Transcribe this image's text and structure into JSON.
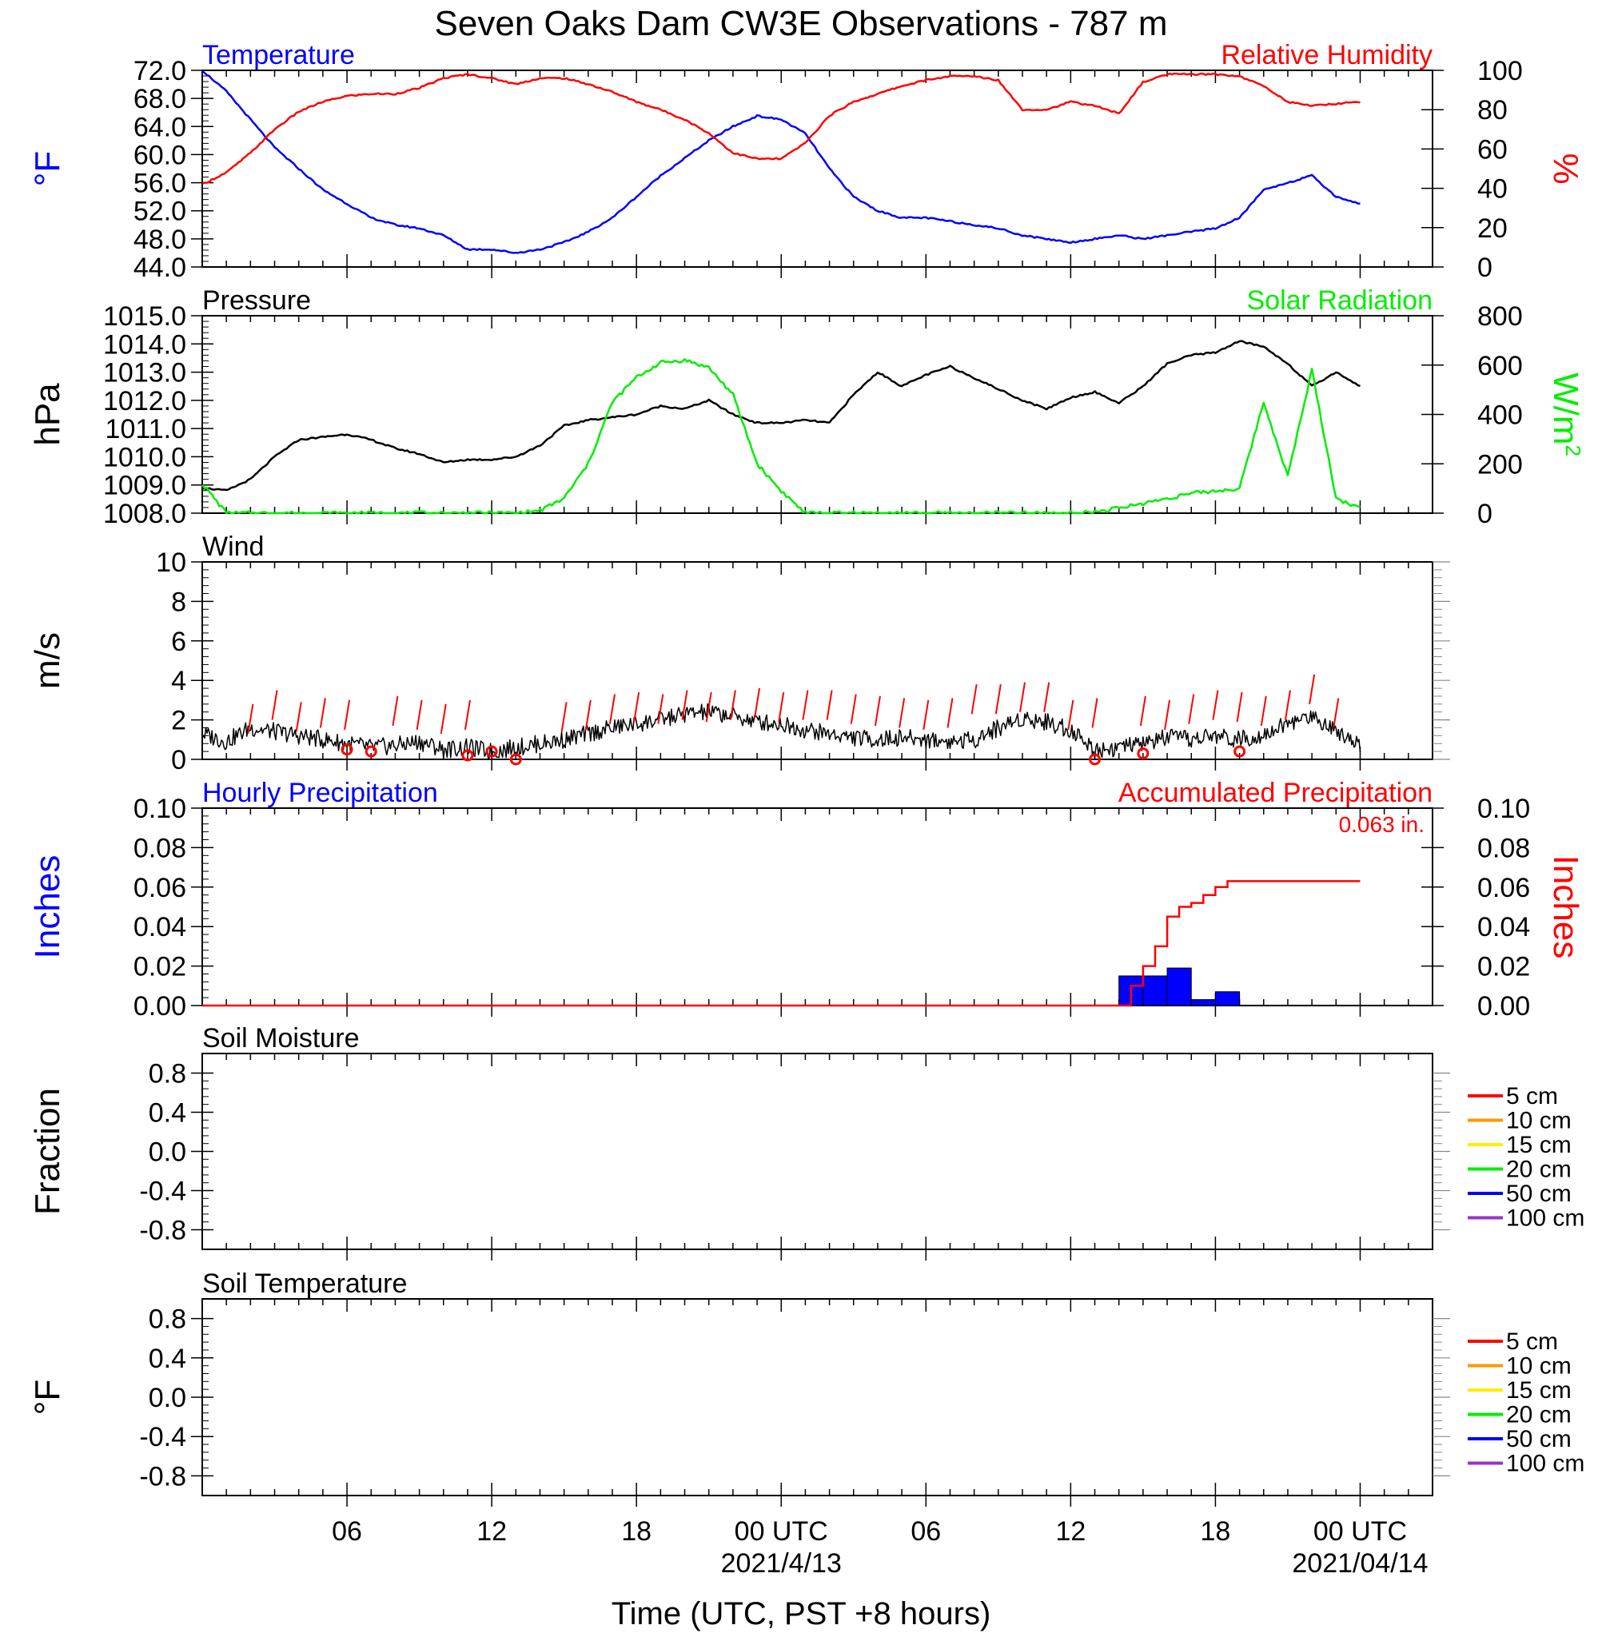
{
  "figure": {
    "title": "Seven Oaks Dam CW3E Observations - 787 m",
    "xlabel": "Time (UTC, PST +8 hours)",
    "x_ticks": [
      "06",
      "12",
      "18",
      "00 UTC",
      "06",
      "12",
      "18",
      "00 UTC"
    ],
    "x_dates": [
      "2021/4/13",
      "2021/04/14"
    ]
  },
  "colors": {
    "temperature": "#0000ff",
    "humidity": "#ff0000",
    "pressure": "#000000",
    "solar": "#00ee00",
    "wind": "#000000",
    "gust": "#ff0000",
    "hourly_precip": "#0000ff",
    "accum_precip": "#ff0000"
  },
  "chart_data": [
    {
      "id": "temp_rh",
      "type": "line",
      "left_title": "Temperature",
      "right_title": "Relative Humidity",
      "ylabel_left": "°F",
      "ylabel_right": "%",
      "ylim_left": [
        44,
        72
      ],
      "ylim_right": [
        0,
        100
      ],
      "yticks_left": [
        "72.0",
        "68.0",
        "64.0",
        "60.0",
        "56.0",
        "52.0",
        "48.0",
        "44.0"
      ],
      "yticks_right": [
        "100",
        "80",
        "60",
        "40",
        "20",
        "0"
      ],
      "x_hours": [
        0,
        1,
        2,
        3,
        4,
        5,
        6,
        7,
        8,
        9,
        10,
        11,
        12,
        13,
        14,
        15,
        16,
        17,
        18,
        19,
        20,
        21,
        22,
        23,
        24,
        25,
        26,
        27,
        28,
        29,
        30,
        31,
        32,
        33,
        34,
        35,
        36,
        37,
        38,
        39,
        40,
        41,
        42,
        43,
        44,
        45,
        46,
        47,
        48
      ],
      "series": [
        {
          "name": "Temperature",
          "axis": "left",
          "color_key": "temperature",
          "values": [
            72,
            69,
            65,
            61,
            58,
            55,
            53,
            51,
            50,
            49.5,
            48.5,
            46.5,
            46.5,
            46,
            46.5,
            47.5,
            49,
            51,
            54,
            57,
            59.5,
            62,
            64,
            65.5,
            65,
            63,
            58,
            54,
            52,
            51,
            51,
            50.5,
            50,
            49.5,
            48.5,
            48,
            47.5,
            48,
            48.5,
            48,
            48.5,
            49,
            49.5,
            51,
            55,
            56,
            57,
            54,
            53
          ]
        },
        {
          "name": "Relative Humidity",
          "axis": "right",
          "color_key": "humidity",
          "values": [
            42,
            48,
            58,
            70,
            79,
            84,
            87,
            88,
            88,
            91,
            96,
            98,
            96,
            93,
            96,
            96,
            93,
            89,
            84,
            80,
            75,
            68,
            58,
            55,
            55,
            63,
            77,
            84,
            88,
            92,
            95,
            97,
            97,
            95,
            80,
            80,
            84,
            82,
            78,
            94,
            98,
            98,
            98,
            97,
            92,
            84,
            82,
            83,
            84
          ]
        }
      ]
    },
    {
      "id": "pressure_solar",
      "type": "line",
      "left_title": "Pressure",
      "right_title": "Solar Radiation",
      "ylabel_left": "hPa",
      "ylabel_right": "W/m",
      "ylabel_right_sup": "2",
      "ylim_left": [
        1008,
        1015
      ],
      "ylim_right": [
        0,
        800
      ],
      "yticks_left": [
        "1015.0",
        "1014.0",
        "1013.0",
        "1012.0",
        "1011.0",
        "1010.0",
        "1009.0",
        "1008.0"
      ],
      "yticks_right": [
        "800",
        "600",
        "400",
        "200",
        "0"
      ],
      "x_hours": [
        0,
        1,
        2,
        3,
        4,
        5,
        6,
        7,
        8,
        9,
        10,
        11,
        12,
        13,
        14,
        15,
        16,
        17,
        18,
        19,
        20,
        21,
        22,
        23,
        24,
        25,
        26,
        27,
        28,
        29,
        30,
        31,
        32,
        33,
        34,
        35,
        36,
        37,
        38,
        39,
        40,
        41,
        42,
        43,
        44,
        45,
        46,
        47,
        48
      ],
      "series": [
        {
          "name": "Pressure",
          "axis": "left",
          "color_key": "pressure",
          "values": [
            1008.9,
            1008.8,
            1009.2,
            1010.0,
            1010.6,
            1010.7,
            1010.8,
            1010.6,
            1010.3,
            1010.1,
            1009.8,
            1009.9,
            1009.9,
            1010.0,
            1010.4,
            1011.1,
            1011.3,
            1011.4,
            1011.5,
            1011.8,
            1011.7,
            1012.0,
            1011.5,
            1011.2,
            1011.2,
            1011.3,
            1011.2,
            1012.2,
            1013.0,
            1012.5,
            1012.9,
            1013.2,
            1012.8,
            1012.4,
            1012.0,
            1011.7,
            1012.1,
            1012.3,
            1011.9,
            1012.5,
            1013.3,
            1013.6,
            1013.7,
            1014.1,
            1013.9,
            1013.3,
            1012.5,
            1013.0,
            1012.5
          ]
        },
        {
          "name": "Solar Radiation",
          "axis": "right",
          "color_key": "solar",
          "values": [
            120,
            0,
            0,
            0,
            0,
            0,
            0,
            0,
            0,
            0,
            0,
            0,
            0,
            0,
            10,
            60,
            200,
            450,
            550,
            610,
            620,
            590,
            480,
            200,
            90,
            0,
            0,
            0,
            0,
            0,
            0,
            0,
            0,
            0,
            0,
            0,
            0,
            5,
            20,
            40,
            60,
            80,
            90,
            100,
            450,
            150,
            580,
            60,
            20
          ]
        }
      ]
    },
    {
      "id": "wind",
      "type": "line",
      "left_title": "Wind",
      "ylabel_left": "m/s",
      "ylim_left": [
        0,
        10
      ],
      "yticks_left": [
        "10",
        "8",
        "6",
        "4",
        "2",
        "0"
      ],
      "x_hours": [
        0,
        1,
        2,
        3,
        4,
        5,
        6,
        7,
        8,
        9,
        10,
        11,
        12,
        13,
        14,
        15,
        16,
        17,
        18,
        19,
        20,
        21,
        22,
        23,
        24,
        25,
        26,
        27,
        28,
        29,
        30,
        31,
        32,
        33,
        34,
        35,
        36,
        37,
        38,
        39,
        40,
        41,
        42,
        43,
        44,
        45,
        46,
        47,
        48
      ],
      "series": [
        {
          "name": "Wind Speed",
          "axis": "left",
          "color_key": "wind",
          "values": [
            1.3,
            0.9,
            1.6,
            1.4,
            1.2,
            1.0,
            0.8,
            0.6,
            0.7,
            0.9,
            0.5,
            0.6,
            0.4,
            0.6,
            0.8,
            1.0,
            1.3,
            1.6,
            1.8,
            2.0,
            2.3,
            2.4,
            2.2,
            1.9,
            1.8,
            1.5,
            1.3,
            1.1,
            1.0,
            1.1,
            1.0,
            0.9,
            1.0,
            1.6,
            2.1,
            1.9,
            1.5,
            0.5,
            0.6,
            0.8,
            1.1,
            1.0,
            1.2,
            1.0,
            1.3,
            1.8,
            2.2,
            1.5,
            0.8
          ]
        }
      ],
      "gust_hours": [
        2,
        3,
        4,
        5,
        6,
        8,
        9,
        10,
        11,
        15,
        16,
        17,
        18,
        19,
        20,
        21,
        22,
        23,
        24,
        25,
        26,
        27,
        28,
        29,
        30,
        31,
        32,
        33,
        34,
        35,
        36,
        37,
        39,
        40,
        41,
        42,
        43,
        44,
        45,
        46,
        47
      ],
      "gust_values": [
        2.8,
        3.5,
        2.9,
        3.1,
        3.0,
        3.2,
        3.0,
        2.8,
        3.0,
        2.9,
        3.0,
        3.3,
        3.4,
        3.3,
        3.5,
        3.4,
        3.5,
        3.6,
        3.4,
        3.5,
        3.5,
        3.3,
        3.2,
        3.1,
        3.0,
        3.1,
        3.8,
        3.8,
        3.9,
        3.9,
        3.0,
        3.1,
        3.2,
        3.0,
        3.3,
        3.5,
        3.4,
        3.2,
        3.5,
        4.3,
        3.1
      ],
      "calm_hours": [
        6,
        7,
        11,
        12,
        13,
        37,
        39,
        43
      ],
      "calm_values": [
        0.5,
        0.4,
        0.2,
        0.4,
        0.0,
        0.0,
        0.3,
        0.4
      ]
    },
    {
      "id": "precip",
      "type": "bar",
      "left_title": "Hourly Precipitation",
      "right_title": "Accumulated Precipitation",
      "accum_label": "0.063 in.",
      "ylabel_left": "Inches",
      "ylabel_right": "Inches",
      "ylim_left": [
        0,
        0.1
      ],
      "ylim_right": [
        0,
        0.1
      ],
      "yticks_left": [
        "0.10",
        "0.08",
        "0.06",
        "0.04",
        "0.02",
        "0.00"
      ],
      "yticks_right": [
        "0.10",
        "0.08",
        "0.06",
        "0.04",
        "0.02",
        "0.00"
      ],
      "bar_hours": [
        38,
        39,
        40,
        41,
        42
      ],
      "bar_values": [
        0.015,
        0.015,
        0.019,
        0.003,
        0.007
      ],
      "accum_hours": [
        0,
        38,
        38.5,
        39,
        39.5,
        40,
        40.5,
        41,
        41.5,
        42,
        42.5,
        48
      ],
      "accum_values": [
        0,
        0,
        0.01,
        0.02,
        0.03,
        0.045,
        0.05,
        0.052,
        0.056,
        0.06,
        0.063,
        0.063
      ]
    },
    {
      "id": "soil_moisture",
      "type": "line",
      "left_title": "Soil Moisture",
      "ylabel_left": "Fraction",
      "ylim_left": [
        -1,
        1
      ],
      "yticks_left": [
        "0.8",
        "0.4",
        "0.0",
        "-0.4",
        "-0.8"
      ],
      "legend": [
        "5 cm",
        "10 cm",
        "15 cm",
        "20 cm",
        "50 cm",
        "100 cm"
      ],
      "legend_colors": [
        "#ff0000",
        "#ff9900",
        "#ffee00",
        "#00ee00",
        "#0000ff",
        "#9933cc"
      ]
    },
    {
      "id": "soil_temperature",
      "type": "line",
      "left_title": "Soil Temperature",
      "ylabel_left": "°F",
      "ylim_left": [
        -1,
        1
      ],
      "yticks_left": [
        "0.8",
        "0.4",
        "0.0",
        "-0.4",
        "-0.8"
      ],
      "legend": [
        "5 cm",
        "10 cm",
        "15 cm",
        "20 cm",
        "50 cm",
        "100 cm"
      ],
      "legend_colors": [
        "#ff0000",
        "#ff9900",
        "#ffee00",
        "#00ee00",
        "#0000ff",
        "#9933cc"
      ]
    }
  ]
}
